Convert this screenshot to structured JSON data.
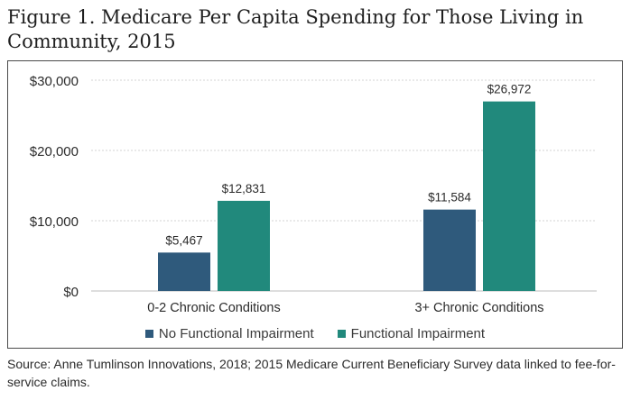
{
  "title": "Figure 1. Medicare Per Capita Spending for Those Living in Community, 2015",
  "source": "Source: Anne Tumlinson Innovations, 2018; 2015 Medicare Current Beneficiary Survey data linked to fee-for-service claims.",
  "chart_data": {
    "type": "bar",
    "categories": [
      "0-2 Chronic Conditions",
      "3+ Chronic Conditions"
    ],
    "series": [
      {
        "name": "No Functional Impairment",
        "values": [
          5467,
          11584
        ],
        "labels": [
          "$5,467",
          "$11,584"
        ],
        "color": "#2f5a7c"
      },
      {
        "name": "Functional Impairment",
        "values": [
          12831,
          26972
        ],
        "labels": [
          "$12,831",
          "$26,972"
        ],
        "color": "#21897c"
      }
    ],
    "yticks": [
      0,
      10000,
      20000,
      30000
    ],
    "ytick_labels": [
      "$0",
      "$10,000",
      "$20,000",
      "$30,000"
    ],
    "ylim": [
      0,
      30000
    ],
    "grid": true,
    "legend_position": "bottom"
  }
}
